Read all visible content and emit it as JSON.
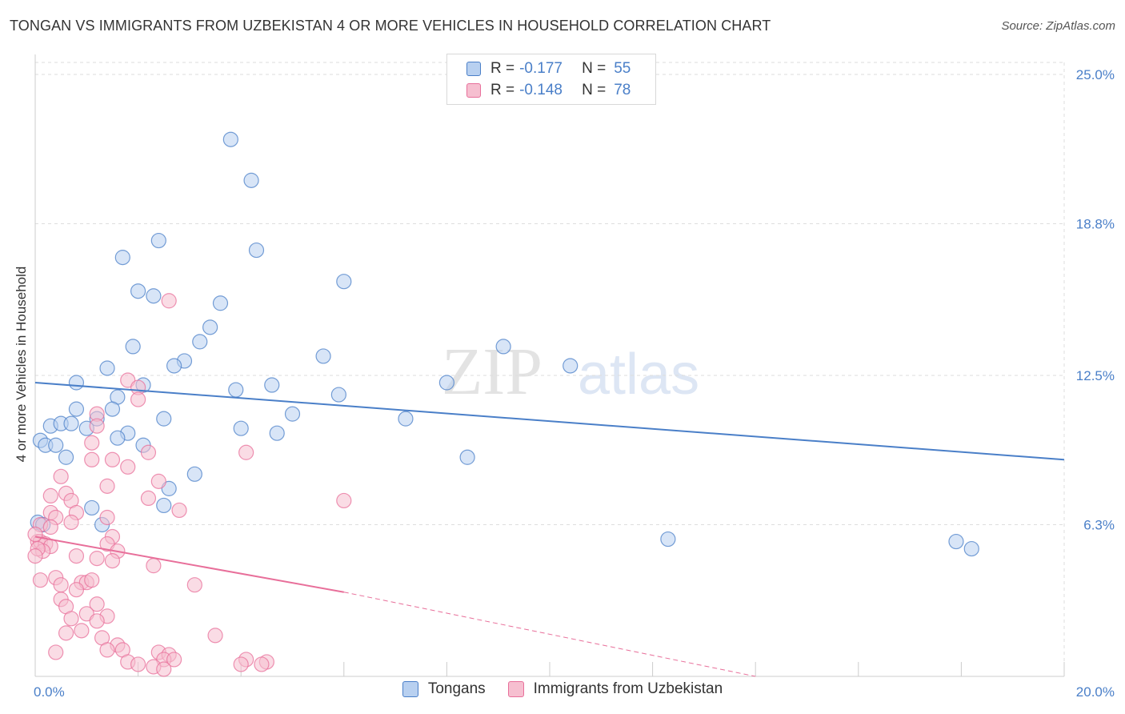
{
  "title": "TONGAN VS IMMIGRANTS FROM UZBEKISTAN 4 OR MORE VEHICLES IN HOUSEHOLD CORRELATION CHART",
  "source": "Source: ZipAtlas.com",
  "watermark": {
    "zip": "ZIP",
    "atlas": "atlas"
  },
  "colors": {
    "blue": "#4a7fc8",
    "blue_fill": "#b8d0f0",
    "pink": "#e86f9a",
    "pink_fill": "#f6bfd0",
    "grid": "#dddddd"
  },
  "legend": {
    "rows": [
      {
        "r_label": "R =",
        "r_value": "-0.177",
        "n_label": "N =",
        "n_value": "55"
      },
      {
        "r_label": "R =",
        "r_value": "-0.148",
        "n_label": "N =",
        "n_value": "78"
      }
    ]
  },
  "bottom_legend": [
    "Tongans",
    "Immigrants from Uzbekistan"
  ],
  "chart_data": {
    "type": "scatter",
    "title": "TONGAN VS IMMIGRANTS FROM UZBEKISTAN 4 OR MORE VEHICLES IN HOUSEHOLD CORRELATION CHART",
    "xlabel": "",
    "ylabel": "4 or more Vehicles in Household",
    "xlim": [
      0,
      20
    ],
    "ylim": [
      0,
      25
    ],
    "y_ticks": [
      6.3,
      12.5,
      18.8,
      25.0
    ],
    "y_tick_labels": [
      "6.3%",
      "12.5%",
      "18.8%",
      "25.0%"
    ],
    "x_tick_labels": [
      "0.0%",
      "20.0%"
    ],
    "legend_position": "top-center",
    "series": [
      {
        "name": "Tongans",
        "r": -0.177,
        "n": 55,
        "trend": {
          "x": [
            0,
            20
          ],
          "y": [
            12.2,
            9.0
          ]
        },
        "points": [
          [
            3.8,
            22.3
          ],
          [
            4.2,
            20.6
          ],
          [
            2.4,
            18.1
          ],
          [
            4.3,
            17.7
          ],
          [
            1.7,
            17.4
          ],
          [
            6.0,
            16.4
          ],
          [
            2.0,
            16.0
          ],
          [
            2.3,
            15.8
          ],
          [
            3.6,
            15.5
          ],
          [
            3.4,
            14.5
          ],
          [
            3.2,
            13.9
          ],
          [
            1.9,
            13.7
          ],
          [
            9.1,
            13.7
          ],
          [
            5.6,
            13.3
          ],
          [
            2.9,
            13.1
          ],
          [
            1.4,
            12.8
          ],
          [
            2.7,
            12.9
          ],
          [
            10.4,
            12.9
          ],
          [
            0.8,
            12.2
          ],
          [
            2.1,
            12.1
          ],
          [
            4.6,
            12.1
          ],
          [
            8.0,
            12.2
          ],
          [
            3.9,
            11.9
          ],
          [
            5.9,
            11.7
          ],
          [
            1.6,
            11.6
          ],
          [
            0.8,
            11.1
          ],
          [
            1.5,
            11.1
          ],
          [
            5.0,
            10.9
          ],
          [
            2.5,
            10.7
          ],
          [
            1.2,
            10.7
          ],
          [
            7.2,
            10.7
          ],
          [
            0.3,
            10.4
          ],
          [
            0.5,
            10.5
          ],
          [
            0.7,
            10.5
          ],
          [
            1.0,
            10.3
          ],
          [
            4.0,
            10.3
          ],
          [
            1.8,
            10.1
          ],
          [
            4.7,
            10.1
          ],
          [
            0.1,
            9.8
          ],
          [
            0.2,
            9.6
          ],
          [
            0.4,
            9.6
          ],
          [
            2.1,
            9.6
          ],
          [
            1.6,
            9.9
          ],
          [
            0.6,
            9.1
          ],
          [
            8.4,
            9.1
          ],
          [
            3.1,
            8.4
          ],
          [
            2.6,
            7.8
          ],
          [
            2.5,
            7.1
          ],
          [
            1.1,
            7.0
          ],
          [
            1.3,
            6.3
          ],
          [
            0.05,
            6.4
          ],
          [
            0.15,
            6.3
          ],
          [
            12.3,
            5.7
          ],
          [
            17.9,
            5.6
          ],
          [
            18.2,
            5.3
          ]
        ]
      },
      {
        "name": "Immigrants from Uzbekistan",
        "r": -0.148,
        "n": 78,
        "trend": {
          "x": [
            0,
            6.0
          ],
          "y": [
            5.8,
            3.5
          ],
          "dashed_to": [
            14.0,
            0
          ]
        },
        "points": [
          [
            2.6,
            15.6
          ],
          [
            1.8,
            12.3
          ],
          [
            2.0,
            12.0
          ],
          [
            2.0,
            11.5
          ],
          [
            1.2,
            10.9
          ],
          [
            1.2,
            10.4
          ],
          [
            1.1,
            9.7
          ],
          [
            4.1,
            9.3
          ],
          [
            2.2,
            9.3
          ],
          [
            1.1,
            9.0
          ],
          [
            1.5,
            9.0
          ],
          [
            1.8,
            8.7
          ],
          [
            0.5,
            8.3
          ],
          [
            2.4,
            8.1
          ],
          [
            1.4,
            7.9
          ],
          [
            0.6,
            7.6
          ],
          [
            0.3,
            7.5
          ],
          [
            0.7,
            7.3
          ],
          [
            2.2,
            7.4
          ],
          [
            6.0,
            7.3
          ],
          [
            2.8,
            6.9
          ],
          [
            0.3,
            6.8
          ],
          [
            0.8,
            6.8
          ],
          [
            1.4,
            6.6
          ],
          [
            0.4,
            6.6
          ],
          [
            0.7,
            6.4
          ],
          [
            0.1,
            6.3
          ],
          [
            0.3,
            6.2
          ],
          [
            1.5,
            5.8
          ],
          [
            0.05,
            5.6
          ],
          [
            0.1,
            5.6
          ],
          [
            0.2,
            5.5
          ],
          [
            0.3,
            5.4
          ],
          [
            1.4,
            5.5
          ],
          [
            1.6,
            5.2
          ],
          [
            0.15,
            5.2
          ],
          [
            0.8,
            5.0
          ],
          [
            1.2,
            4.9
          ],
          [
            1.5,
            4.8
          ],
          [
            0.05,
            5.3
          ],
          [
            2.3,
            4.6
          ],
          [
            0.1,
            4.0
          ],
          [
            0.4,
            4.1
          ],
          [
            0.5,
            3.8
          ],
          [
            0.9,
            3.9
          ],
          [
            1.0,
            3.9
          ],
          [
            1.1,
            4.0
          ],
          [
            0.8,
            3.6
          ],
          [
            3.1,
            3.8
          ],
          [
            0.5,
            3.2
          ],
          [
            0.6,
            2.9
          ],
          [
            1.2,
            3.0
          ],
          [
            1.0,
            2.6
          ],
          [
            1.4,
            2.5
          ],
          [
            0.7,
            2.4
          ],
          [
            1.2,
            2.3
          ],
          [
            0.9,
            1.9
          ],
          [
            0.6,
            1.8
          ],
          [
            1.3,
            1.6
          ],
          [
            3.5,
            1.7
          ],
          [
            1.6,
            1.3
          ],
          [
            1.7,
            1.1
          ],
          [
            0.4,
            1.0
          ],
          [
            1.4,
            1.1
          ],
          [
            2.4,
            1.0
          ],
          [
            2.6,
            0.9
          ],
          [
            2.5,
            0.7
          ],
          [
            2.7,
            0.7
          ],
          [
            4.1,
            0.7
          ],
          [
            4.5,
            0.6
          ],
          [
            1.8,
            0.6
          ],
          [
            4.0,
            0.5
          ],
          [
            2.0,
            0.5
          ],
          [
            4.4,
            0.5
          ],
          [
            2.3,
            0.4
          ],
          [
            2.5,
            0.3
          ],
          [
            0.0,
            5.9
          ],
          [
            0.0,
            5.0
          ]
        ]
      }
    ]
  }
}
